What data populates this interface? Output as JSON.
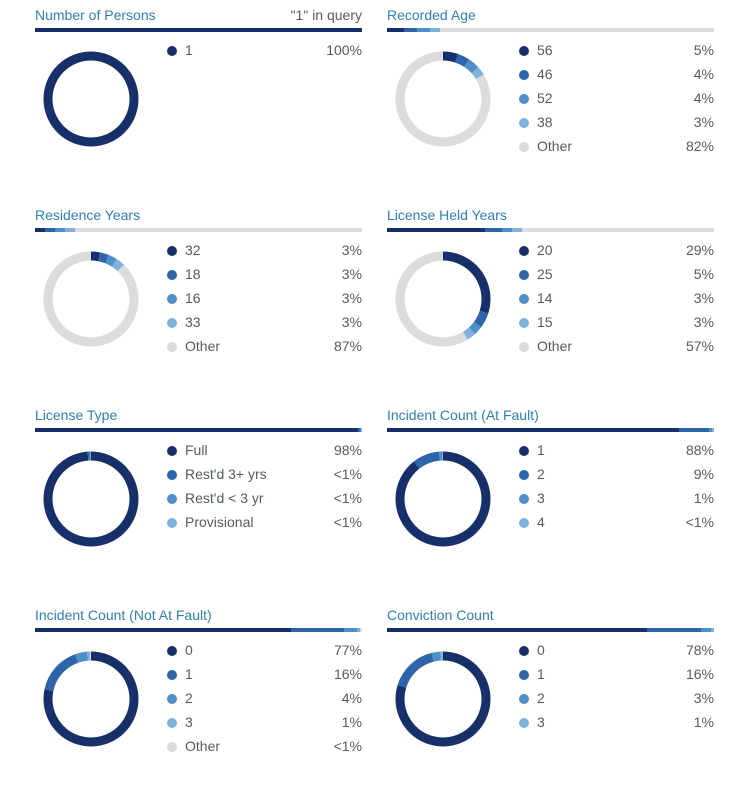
{
  "colors": {
    "c1": "#17306a",
    "c2": "#2e64aa",
    "c3": "#4d8fc9",
    "c4": "#7fb2dc",
    "other": "#dcdcdc",
    "track": "#e2e2e2"
  },
  "chart_data": [
    {
      "type": "pie",
      "title": "Number of Persons",
      "note": "\"1\" in query",
      "segments": [
        {
          "label": "1",
          "value": 100,
          "display": "100%"
        }
      ]
    },
    {
      "type": "pie",
      "title": "Recorded Age",
      "segments": [
        {
          "label": "56",
          "value": 5,
          "display": "5%"
        },
        {
          "label": "46",
          "value": 4,
          "display": "4%"
        },
        {
          "label": "52",
          "value": 4,
          "display": "4%"
        },
        {
          "label": "38",
          "value": 3,
          "display": "3%"
        },
        {
          "label": "Other",
          "value": 82,
          "display": "82%",
          "other": true
        }
      ]
    },
    {
      "type": "pie",
      "title": "Residence Years",
      "segments": [
        {
          "label": "32",
          "value": 3,
          "display": "3%"
        },
        {
          "label": "18",
          "value": 3,
          "display": "3%"
        },
        {
          "label": "16",
          "value": 3,
          "display": "3%"
        },
        {
          "label": "33",
          "value": 3,
          "display": "3%"
        },
        {
          "label": "Other",
          "value": 87,
          "display": "87%",
          "other": true
        }
      ]
    },
    {
      "type": "pie",
      "title": "License Held Years",
      "segments": [
        {
          "label": "20",
          "value": 29,
          "display": "29%"
        },
        {
          "label": "25",
          "value": 5,
          "display": "5%"
        },
        {
          "label": "14",
          "value": 3,
          "display": "3%"
        },
        {
          "label": "15",
          "value": 3,
          "display": "3%"
        },
        {
          "label": "Other",
          "value": 57,
          "display": "57%",
          "other": true
        }
      ]
    },
    {
      "type": "pie",
      "title": "License Type",
      "segments": [
        {
          "label": "Full",
          "value": 98,
          "display": "98%"
        },
        {
          "label": "Rest'd 3+ yrs",
          "value": 0.6,
          "display": "<1%"
        },
        {
          "label": "Rest'd < 3 yr",
          "value": 0.4,
          "display": "<1%"
        },
        {
          "label": "Provisional",
          "value": 0.3,
          "display": "<1%"
        }
      ]
    },
    {
      "type": "pie",
      "title": "Incident Count (At Fault)",
      "segments": [
        {
          "label": "1",
          "value": 88,
          "display": "88%"
        },
        {
          "label": "2",
          "value": 9,
          "display": "9%"
        },
        {
          "label": "3",
          "value": 1,
          "display": "1%"
        },
        {
          "label": "4",
          "value": 0.5,
          "display": "<1%"
        }
      ]
    },
    {
      "type": "pie",
      "title": "Incident Count (Not At Fault)",
      "segments": [
        {
          "label": "0",
          "value": 77,
          "display": "77%"
        },
        {
          "label": "1",
          "value": 16,
          "display": "16%"
        },
        {
          "label": "2",
          "value": 4,
          "display": "4%"
        },
        {
          "label": "3",
          "value": 1,
          "display": "1%"
        },
        {
          "label": "Other",
          "value": 0.5,
          "display": "<1%",
          "other": true
        }
      ]
    },
    {
      "type": "pie",
      "title": "Conviction Count",
      "segments": [
        {
          "label": "0",
          "value": 78,
          "display": "78%"
        },
        {
          "label": "1",
          "value": 16,
          "display": "16%"
        },
        {
          "label": "2",
          "value": 3,
          "display": "3%"
        },
        {
          "label": "3",
          "value": 1,
          "display": "1%"
        }
      ]
    }
  ]
}
